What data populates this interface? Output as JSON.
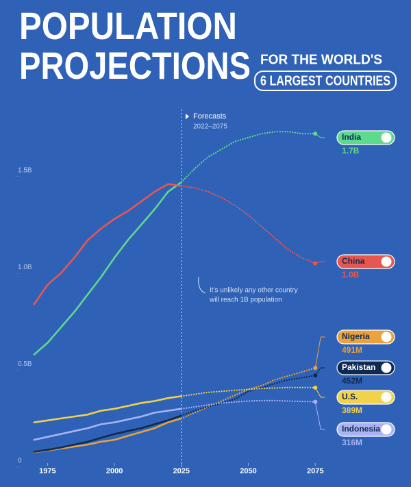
{
  "chart_data": {
    "type": "line",
    "title": [
      "POPULATION",
      "PROJECTIONS"
    ],
    "subtitle": [
      "FOR THE WORLD'S",
      "6 LARGEST COUNTRIES"
    ],
    "forecast_label": "Forecasts",
    "forecast_range": "2022–2075",
    "forecast_from": 2025,
    "annotation": [
      "It's unlikely any other country",
      "will reach 1B population"
    ],
    "x": [
      1970,
      1975,
      1980,
      1985,
      1990,
      1995,
      2000,
      2005,
      2010,
      2015,
      2020,
      2025,
      2030,
      2035,
      2040,
      2045,
      2050,
      2055,
      2060,
      2065,
      2070,
      2075
    ],
    "xlim": [
      1968,
      2078
    ],
    "xticks": [
      1975,
      2000,
      2025,
      2050,
      2075
    ],
    "ylim": [
      0,
      1.75
    ],
    "yticks": [
      0,
      {
        "value": 0.5,
        "label": "0.5B"
      },
      {
        "value": 1.0,
        "label": "1.0B"
      },
      {
        "value": 1.5,
        "label": "1.5B"
      }
    ],
    "series": [
      {
        "name": "India",
        "color": "#5fd98e",
        "values": [
          0.56,
          0.62,
          0.7,
          0.78,
          0.87,
          0.96,
          1.06,
          1.15,
          1.23,
          1.31,
          1.4,
          1.45,
          1.52,
          1.58,
          1.62,
          1.66,
          1.68,
          1.7,
          1.71,
          1.71,
          1.7,
          1.7
        ],
        "value_labels": [
          null,
          null,
          null,
          null,
          null,
          null,
          null,
          null,
          null,
          null,
          null,
          null,
          null,
          null,
          null,
          null,
          null,
          null,
          null,
          null,
          null,
          "1.7B"
        ]
      },
      {
        "name": "China",
        "color": "#e8574f",
        "values": [
          0.82,
          0.92,
          0.98,
          1.06,
          1.15,
          1.21,
          1.26,
          1.3,
          1.35,
          1.4,
          1.44,
          1.43,
          1.42,
          1.4,
          1.37,
          1.33,
          1.28,
          1.22,
          1.16,
          1.1,
          1.06,
          1.03
        ],
        "value_labels": [
          null,
          null,
          null,
          null,
          null,
          null,
          null,
          null,
          null,
          null,
          null,
          null,
          null,
          null,
          null,
          null,
          null,
          null,
          null,
          null,
          null,
          "1.0B"
        ]
      },
      {
        "name": "Nigeria",
        "color": "#eba23c",
        "values": [
          0.056,
          0.065,
          0.075,
          0.085,
          0.095,
          0.11,
          0.12,
          0.14,
          0.16,
          0.18,
          0.21,
          0.23,
          0.26,
          0.29,
          0.32,
          0.35,
          0.38,
          0.4,
          0.43,
          0.45,
          0.47,
          0.491
        ],
        "value_labels": [
          null,
          null,
          null,
          null,
          null,
          null,
          null,
          null,
          null,
          null,
          null,
          null,
          null,
          null,
          null,
          null,
          null,
          null,
          null,
          null,
          null,
          "491M"
        ]
      },
      {
        "name": "Pakistan",
        "color": "#0f2a52",
        "values": [
          0.058,
          0.068,
          0.08,
          0.095,
          0.11,
          0.13,
          0.15,
          0.165,
          0.18,
          0.2,
          0.22,
          0.245,
          0.27,
          0.29,
          0.31,
          0.33,
          0.37,
          0.39,
          0.41,
          0.43,
          0.44,
          0.452
        ],
        "value_labels": [
          null,
          null,
          null,
          null,
          null,
          null,
          null,
          null,
          null,
          null,
          null,
          null,
          null,
          null,
          null,
          null,
          null,
          null,
          null,
          null,
          null,
          "452M"
        ]
      },
      {
        "name": "U.S.",
        "color": "#f2d24a",
        "values": [
          0.21,
          0.22,
          0.23,
          0.24,
          0.25,
          0.27,
          0.28,
          0.295,
          0.31,
          0.32,
          0.335,
          0.345,
          0.355,
          0.365,
          0.37,
          0.375,
          0.38,
          0.385,
          0.387,
          0.39,
          0.39,
          0.389
        ],
        "value_labels": [
          null,
          null,
          null,
          null,
          null,
          null,
          null,
          null,
          null,
          null,
          null,
          null,
          null,
          null,
          null,
          null,
          null,
          null,
          null,
          null,
          null,
          "389M"
        ]
      },
      {
        "name": "Indonesia",
        "color": "#aab4f5",
        "values": [
          0.12,
          0.135,
          0.15,
          0.165,
          0.18,
          0.2,
          0.21,
          0.225,
          0.24,
          0.26,
          0.27,
          0.28,
          0.29,
          0.3,
          0.31,
          0.315,
          0.32,
          0.322,
          0.322,
          0.32,
          0.318,
          0.316
        ],
        "value_labels": [
          null,
          null,
          null,
          null,
          null,
          null,
          null,
          null,
          null,
          null,
          null,
          null,
          null,
          null,
          null,
          null,
          null,
          null,
          null,
          null,
          null,
          "316M"
        ]
      }
    ]
  }
}
